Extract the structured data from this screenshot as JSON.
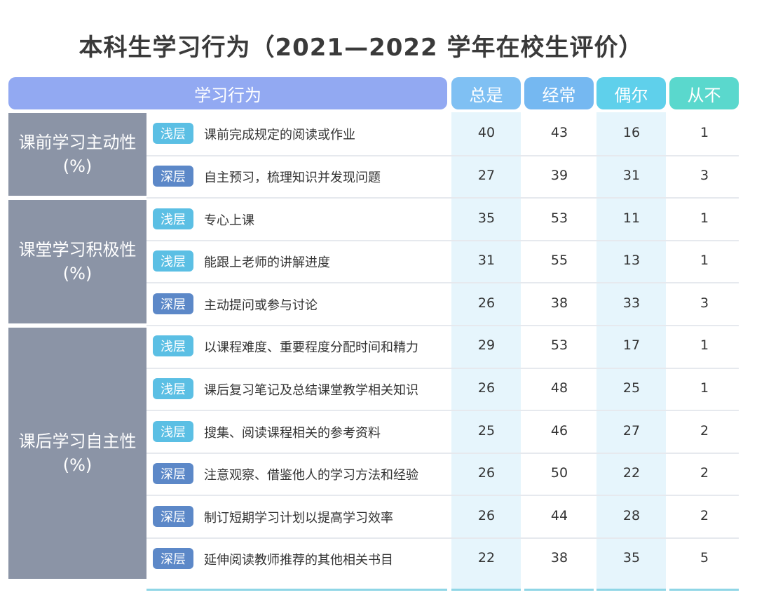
{
  "title": "本科生学习行为（2021—2022 学年在校生评价）",
  "header": {
    "behavior_label": "学习行为",
    "columns": [
      "总是",
      "经常",
      "偶尔",
      "从不"
    ]
  },
  "colors": {
    "header_main": "#92a9f2",
    "col_headers": [
      "#7fc0f3",
      "#75b8f1",
      "#5fd0eb",
      "#5ad8cd"
    ],
    "tag_shallow": "#5bbfe4",
    "tag_deep": "#5c88c8",
    "group_bg": "#8b94a6"
  },
  "chart_data": {
    "type": "table",
    "title": "本科生学习行为（2021—2022 学年在校生评价）",
    "columns": [
      "总是",
      "经常",
      "偶尔",
      "从不"
    ],
    "groups": [
      {
        "name": "课前学习主动性",
        "unit": "(%)",
        "rows": [
          {
            "level": "浅层",
            "item": "课前完成规定的阅读或作业",
            "values": [
              40,
              43,
              16,
              1
            ]
          },
          {
            "level": "深层",
            "item": "自主预习，梳理知识并发现问题",
            "values": [
              27,
              39,
              31,
              3
            ]
          }
        ]
      },
      {
        "name": "课堂学习积极性",
        "unit": "(%)",
        "rows": [
          {
            "level": "浅层",
            "item": "专心上课",
            "values": [
              35,
              53,
              11,
              1
            ]
          },
          {
            "level": "浅层",
            "item": "能跟上老师的讲解进度",
            "values": [
              31,
              55,
              13,
              1
            ]
          },
          {
            "level": "深层",
            "item": "主动提问或参与讨论",
            "values": [
              26,
              38,
              33,
              3
            ]
          }
        ]
      },
      {
        "name": "课后学习自主性",
        "unit": "(%)",
        "rows": [
          {
            "level": "浅层",
            "item": "以课程难度、重要程度分配时间和精力",
            "values": [
              29,
              53,
              17,
              1
            ]
          },
          {
            "level": "浅层",
            "item": "课后复习笔记及总结课堂教学相关知识",
            "values": [
              26,
              48,
              25,
              1
            ]
          },
          {
            "level": "浅层",
            "item": "搜集、阅读课程相关的参考资料",
            "values": [
              25,
              46,
              27,
              2
            ]
          },
          {
            "level": "深层",
            "item": "注意观察、借鉴他人的学习方法和经验",
            "values": [
              26,
              50,
              22,
              2
            ]
          },
          {
            "level": "深层",
            "item": "制订短期学习计划以提高学习效率",
            "values": [
              26,
              44,
              28,
              2
            ]
          },
          {
            "level": "深层",
            "item": "延伸阅读教师推荐的其他相关书目",
            "values": [
              22,
              38,
              35,
              5
            ]
          }
        ]
      }
    ]
  }
}
